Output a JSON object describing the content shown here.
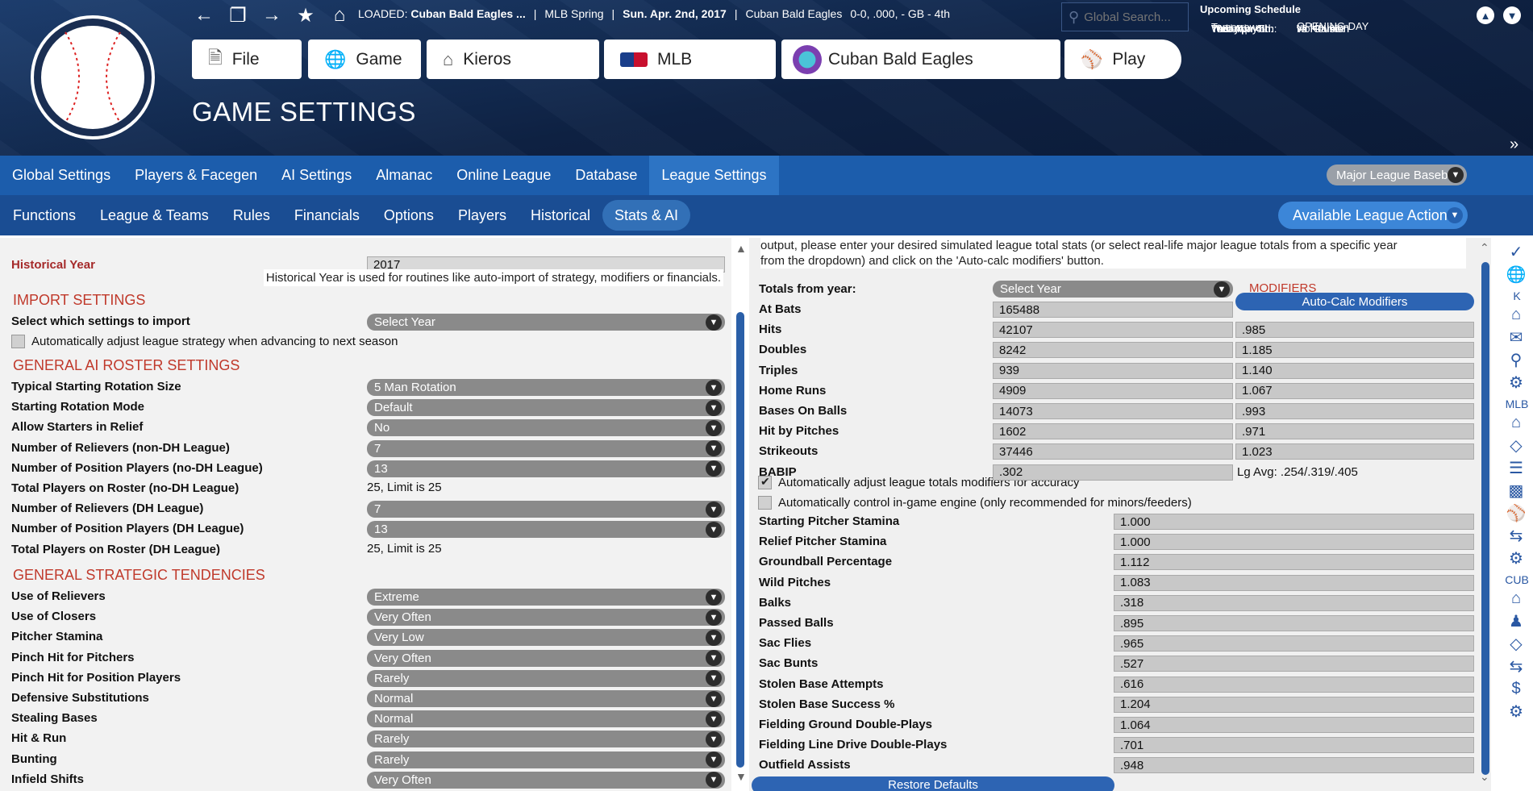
{
  "header": {
    "loaded_label": "LOADED:",
    "loaded_team": "Cuban Bald Eagles ...",
    "season_phase": "MLB Spring",
    "date": "Sun. Apr. 2nd, 2017",
    "team_name": "Cuban Bald Eagles",
    "record": "0-0, .000, - GB - 4th",
    "sep": "|",
    "search_placeholder": "Global Search...",
    "page_title": "GAME SETTINGS",
    "buttons": {
      "file": "File",
      "game": "Game",
      "kieros": "Kieros",
      "mlb": "MLB",
      "team": "Cuban Bald Eagles",
      "play": "Play"
    }
  },
  "schedule": {
    "title": "Upcoming Schedule",
    "rows": [
      {
        "day": "Yesterday:",
        "game": ""
      },
      {
        "day": "Today:",
        "game": "No Game."
      },
      {
        "day": "Tomorrow:",
        "game": "vs Houston"
      },
      {
        "day": "",
        "game": "OPENING DAY"
      },
      {
        "day": "Tue. Apr. 4th:",
        "game": "vs Houston"
      },
      {
        "day": "Wed. Apr. 5th:",
        "game": "vs Houston"
      },
      {
        "day": "Thu. Apr. 6th:",
        "game": "vs Houston"
      }
    ]
  },
  "nav1": {
    "tabs": [
      "Global Settings",
      "Players & Facegen",
      "AI Settings",
      "Almanac",
      "Online League",
      "Database",
      "League Settings"
    ],
    "active": "League Settings",
    "league_select": "Major League Baseball"
  },
  "nav2": {
    "tabs": [
      "Functions",
      "League & Teams",
      "Rules",
      "Financials",
      "Options",
      "Players",
      "Historical",
      "Stats & AI"
    ],
    "active": "Stats & AI",
    "actions": "Available League Actions"
  },
  "left": {
    "historical_year_label": "Historical Year",
    "historical_year_value": "2017",
    "historical_year_note": "Historical Year is used for routines like auto-import of strategy, modifiers or financials.",
    "import_heading": "IMPORT SETTINGS",
    "import_label": "Select which settings to import",
    "import_value": "Select Year",
    "auto_adjust_label": "Automatically adjust league strategy when advancing to next season",
    "roster_heading": "GENERAL AI ROSTER SETTINGS",
    "roster_rows": [
      {
        "label": "Typical Starting Rotation Size",
        "value": "5 Man Rotation",
        "type": "dd"
      },
      {
        "label": "Starting Rotation Mode",
        "value": "Default",
        "type": "dd"
      },
      {
        "label": "Allow Starters in Relief",
        "value": "No",
        "type": "dd"
      },
      {
        "label": "Number of Relievers (non-DH League)",
        "value": "7",
        "type": "dd"
      },
      {
        "label": "Number of Position Players (no-DH League)",
        "value": "13",
        "type": "dd"
      },
      {
        "label": "Total Players on Roster (no-DH League)",
        "value": "25, Limit is 25",
        "type": "text"
      },
      {
        "label": "Number of Relievers (DH League)",
        "value": "7",
        "type": "dd"
      },
      {
        "label": "Number of Position Players (DH League)",
        "value": "13",
        "type": "dd"
      },
      {
        "label": "Total Players on Roster (DH League)",
        "value": "25, Limit is 25",
        "type": "text"
      }
    ],
    "strategy_heading": "GENERAL STRATEGIC TENDENCIES",
    "strategy_rows": [
      {
        "label": "Use of Relievers",
        "value": "Extreme"
      },
      {
        "label": "Use of Closers",
        "value": "Very Often"
      },
      {
        "label": "Pitcher Stamina",
        "value": "Very Low"
      },
      {
        "label": "Pinch Hit for Pitchers",
        "value": "Very Often"
      },
      {
        "label": "Pinch Hit for Position Players",
        "value": "Rarely"
      },
      {
        "label": "Defensive Substitutions",
        "value": "Normal"
      },
      {
        "label": "Stealing Bases",
        "value": "Normal"
      },
      {
        "label": "Hit & Run",
        "value": "Rarely"
      },
      {
        "label": "Bunting",
        "value": "Rarely"
      },
      {
        "label": "Infield Shifts",
        "value": "Very Often"
      }
    ]
  },
  "right": {
    "intro_line1": "output, please enter your desired simulated league total stats (or select real-life major league totals from a specific year",
    "intro_line2": "from the dropdown) and click on the 'Auto-calc modifiers' button.",
    "totals_label": "Totals from year:",
    "totals_value": "Select Year",
    "modifiers_heading": "MODIFIERS",
    "autocalc_button": "Auto-Calc Modifiers",
    "stats": [
      {
        "label": "At Bats",
        "total": "165488",
        "mod": ""
      },
      {
        "label": "Hits",
        "total": "42107",
        "mod": ".985"
      },
      {
        "label": "Doubles",
        "total": "8242",
        "mod": "1.185"
      },
      {
        "label": "Triples",
        "total": "939",
        "mod": "1.140"
      },
      {
        "label": "Home Runs",
        "total": "4909",
        "mod": "1.067"
      },
      {
        "label": "Bases On Balls",
        "total": "14073",
        "mod": ".993"
      },
      {
        "label": "Hit by Pitches",
        "total": "1602",
        "mod": ".971"
      },
      {
        "label": "Strikeouts",
        "total": "37446",
        "mod": "1.023"
      },
      {
        "label": "BABIP",
        "total": ".302",
        "mod": "Lg Avg: .254/.319/.405"
      }
    ],
    "chk1_label": "Automatically adjust league totals modifiers for accuracy",
    "chk1_checked": true,
    "chk2_label": "Automatically control in-game engine (only recommended for minors/feeders)",
    "chk2_checked": false,
    "engine": [
      {
        "label": "Starting Pitcher Stamina",
        "value": "1.000"
      },
      {
        "label": "Relief Pitcher Stamina",
        "value": "1.000"
      },
      {
        "label": "Groundball Percentage",
        "value": "1.112"
      },
      {
        "label": "Wild Pitches",
        "value": "1.083"
      },
      {
        "label": "Balks",
        "value": ".318"
      },
      {
        "label": "Passed Balls",
        "value": ".895"
      },
      {
        "label": "Sac Flies",
        "value": ".965"
      },
      {
        "label": "Sac Bunts",
        "value": ".527"
      },
      {
        "label": "Stolen Base Attempts",
        "value": ".616"
      },
      {
        "label": "Stolen Base Success %",
        "value": "1.204"
      },
      {
        "label": "Fielding Ground Double-Plays",
        "value": "1.064"
      },
      {
        "label": "Fielding Line Drive Double-Plays",
        "value": ".701"
      },
      {
        "label": "Outfield Assists",
        "value": ".948"
      }
    ],
    "restore_button": "Restore Defaults"
  },
  "sidebar": {
    "k_label": "K",
    "mlb_label": "MLB",
    "cub_label": "CUB"
  },
  "colors": {
    "header_bg": "#0e2244",
    "nav1": "#1c5dac",
    "nav2": "#1a4d93",
    "accent": "#c0392b",
    "dropdown": "#8a8a8a"
  }
}
